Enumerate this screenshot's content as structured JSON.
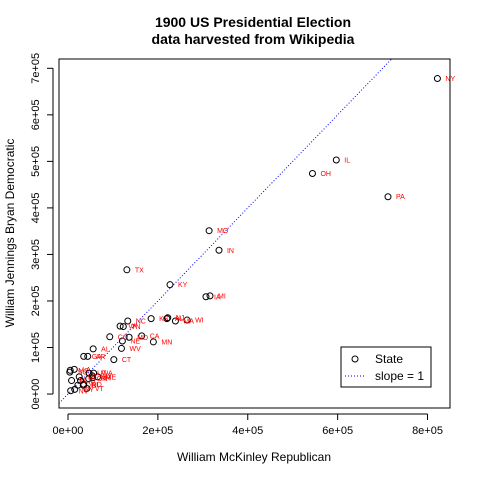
{
  "chart_data": {
    "type": "scatter",
    "title": [
      "1900 US Presidential Election",
      "data harvested from Wikipedia"
    ],
    "xlabel": "William McKinley Republican",
    "ylabel": "William Jennings Bryan Democratic",
    "xlim": [
      -20000,
      850000
    ],
    "ylim": [
      -30000,
      720000
    ],
    "x_ticks": [
      {
        "value": 0,
        "label": "0e+00"
      },
      {
        "value": 200000,
        "label": "2e+05"
      },
      {
        "value": 400000,
        "label": "4e+05"
      },
      {
        "value": 600000,
        "label": "6e+05"
      },
      {
        "value": 800000,
        "label": "8e+05"
      }
    ],
    "y_ticks": [
      {
        "value": 0,
        "label": "0e+00"
      },
      {
        "value": 100000,
        "label": "1e+05"
      },
      {
        "value": 200000,
        "label": "2e+05"
      },
      {
        "value": 300000,
        "label": "3e+05"
      },
      {
        "value": 400000,
        "label": "4e+05"
      },
      {
        "value": 500000,
        "label": "5e+05"
      },
      {
        "value": 600000,
        "label": "6e+05"
      },
      {
        "value": 700000,
        "label": "7e+05"
      }
    ],
    "colors": {
      "points": "#000000",
      "labels": "#ff0000",
      "line": "#0000ff"
    },
    "series": [
      {
        "name": "State",
        "points": [
          {
            "label": "NY",
            "x": 822000,
            "y": 678000
          },
          {
            "label": "PA",
            "x": 712000,
            "y": 424000
          },
          {
            "label": "IL",
            "x": 597000,
            "y": 503000
          },
          {
            "label": "OH",
            "x": 544000,
            "y": 474000
          },
          {
            "label": "MO",
            "x": 314000,
            "y": 351000
          },
          {
            "label": "IN",
            "x": 336000,
            "y": 309000
          },
          {
            "label": "TX",
            "x": 131000,
            "y": 267000
          },
          {
            "label": "KY",
            "x": 227000,
            "y": 235000
          },
          {
            "label": "MI",
            "x": 316000,
            "y": 211000
          },
          {
            "label": "IA",
            "x": 307000,
            "y": 209000
          },
          {
            "label": "WI",
            "x": 265000,
            "y": 159000
          },
          {
            "label": "MA",
            "x": 239000,
            "y": 157000
          },
          {
            "label": "AL",
            "x": 220000,
            "y": 162000
          },
          {
            "label": "KS",
            "x": 185000,
            "y": 162000
          },
          {
            "label": "NC",
            "x": 133000,
            "y": 157000
          },
          {
            "label": "TN",
            "x": 123000,
            "y": 145000
          },
          {
            "label": "VA",
            "x": 116000,
            "y": 146000
          },
          {
            "label": "CA",
            "x": 164000,
            "y": 125000
          },
          {
            "label": "NJ",
            "x": 222000,
            "y": 164000
          },
          {
            "label": "MN",
            "x": 190000,
            "y": 112000
          },
          {
            "label": "NE",
            "x": 121000,
            "y": 114000
          },
          {
            "label": "GA",
            "x": 35000,
            "y": 81000
          },
          {
            "label": "CO",
            "x": 93000,
            "y": 123000
          },
          {
            "label": "AR",
            "x": 44000,
            "y": 81000
          },
          {
            "label": "MD",
            "x": 136000,
            "y": 122000
          },
          {
            "label": "AL",
            "x": 56000,
            "y": 97000
          },
          {
            "label": "WV",
            "x": 119000,
            "y": 98000
          },
          {
            "label": "CT",
            "x": 102000,
            "y": 74000
          },
          {
            "label": "LA",
            "x": 14000,
            "y": 53000
          },
          {
            "label": "SC",
            "x": 4000,
            "y": 47000
          },
          {
            "label": "MS",
            "x": 5000,
            "y": 51000
          },
          {
            "label": "ME",
            "x": 66000,
            "y": 37000
          },
          {
            "label": "OR",
            "x": 46000,
            "y": 33000
          },
          {
            "label": "WA",
            "x": 57000,
            "y": 45000
          },
          {
            "label": "UT",
            "x": 47000,
            "y": 45000
          },
          {
            "label": "RI",
            "x": 34000,
            "y": 19000
          },
          {
            "label": "DE",
            "x": 22000,
            "y": 19000
          },
          {
            "label": "VT",
            "x": 42000,
            "y": 12000
          },
          {
            "label": "NH",
            "x": 55000,
            "y": 35000
          },
          {
            "label": "SD",
            "x": 54000,
            "y": 39000
          },
          {
            "label": "FL",
            "x": 8000,
            "y": 29000
          },
          {
            "label": "MT",
            "x": 25000,
            "y": 37000
          },
          {
            "label": "ND",
            "x": 35000,
            "y": 21000
          },
          {
            "label": "ID",
            "x": 28000,
            "y": 29000
          },
          {
            "label": "WY",
            "x": 15000,
            "y": 10000
          },
          {
            "label": "NV",
            "x": 6000,
            "y": 7000
          }
        ]
      }
    ],
    "reference_line": {
      "name": "slope = 1",
      "slope": 1,
      "intercept": 0,
      "style": "dotted"
    },
    "legend": {
      "position": "bottom-right",
      "entries": [
        "State",
        "slope = 1"
      ]
    },
    "grid": false
  }
}
